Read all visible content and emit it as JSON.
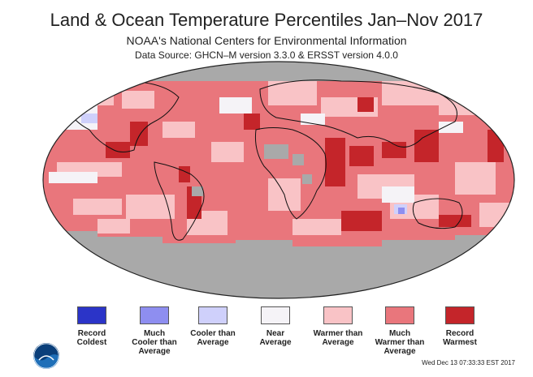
{
  "header": {
    "title": "Land & Ocean Temperature Percentiles Jan–Nov 2017",
    "subtitle": "NOAA's National Centers for Environmental Information",
    "source": "Data Source: GHCN–M version 3.3.0 & ERSST version 4.0.0"
  },
  "colors": {
    "record_coldest": "#2b34c8",
    "much_cooler": "#8e8ef0",
    "cooler": "#cfd0fb",
    "near": "#f5f3f7",
    "warmer": "#f9c3c6",
    "much_warmer": "#e9767c",
    "record_warmest": "#c4252a",
    "no_data": "#a9a9a9"
  },
  "legend": [
    {
      "label1": "Record",
      "label2": "Coldest",
      "label3": "",
      "color_key": "record_coldest"
    },
    {
      "label1": "Much",
      "label2": "Cooler than",
      "label3": "Average",
      "color_key": "much_cooler"
    },
    {
      "label1": "Cooler than",
      "label2": "Average",
      "label3": "",
      "color_key": "cooler"
    },
    {
      "label1": "Near",
      "label2": "Average",
      "label3": "",
      "color_key": "near"
    },
    {
      "label1": "Warmer than",
      "label2": "Average",
      "label3": "",
      "color_key": "warmer"
    },
    {
      "label1": "Much",
      "label2": "Warmer than",
      "label3": "Average",
      "color_key": "much_warmer"
    },
    {
      "label1": "Record",
      "label2": "Warmest",
      "label3": "",
      "color_key": "record_warmest"
    }
  ],
  "timestamp": "Wed Dec 13 07:33:33 EST 2017",
  "logo_icon": "noaa-logo-icon"
}
